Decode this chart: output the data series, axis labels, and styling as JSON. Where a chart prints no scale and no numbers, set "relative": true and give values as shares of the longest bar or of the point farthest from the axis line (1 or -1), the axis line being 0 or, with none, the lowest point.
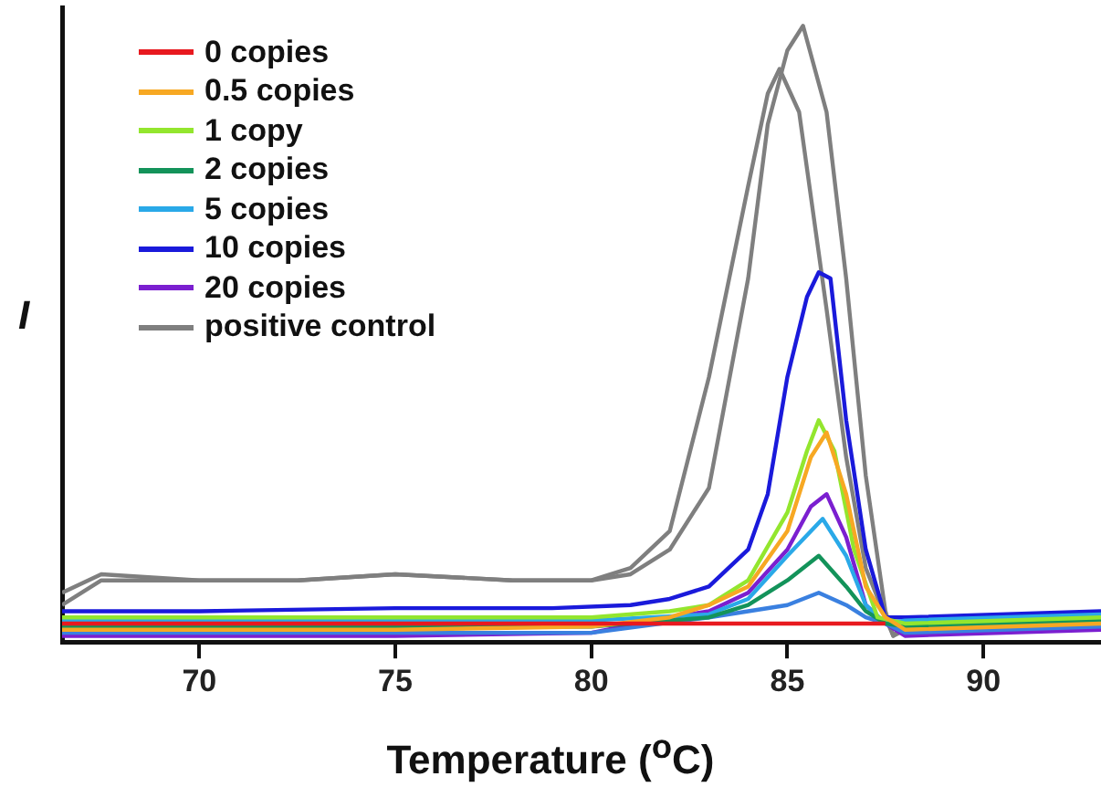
{
  "chart_data": {
    "type": "line",
    "relative": true,
    "xlabel": "Temperature ($^{o}$C)",
    "ylabel": "I",
    "xlim": [
      66.5,
      93
    ],
    "xticks": [
      70,
      75,
      80,
      85,
      90
    ],
    "grid": false,
    "legend": "top left",
    "marker": "none",
    "line_style": "solid",
    "series": [
      {
        "name": "0 copies",
        "color": "#e8191f",
        "x": [
          66.5,
          87.5
        ],
        "values": [
          0.03,
          0.03
        ]
      },
      {
        "name": "0.5 copies",
        "color": "#f7a823",
        "x": [
          66.5,
          75,
          80,
          82,
          83,
          84,
          85,
          85.6,
          86,
          86.5,
          87,
          87.5,
          88,
          93
        ],
        "values": [
          0.02,
          0.02,
          0.025,
          0.04,
          0.06,
          0.09,
          0.18,
          0.3,
          0.34,
          0.24,
          0.09,
          0.04,
          0.02,
          0.03
        ]
      },
      {
        "name": "1 copy",
        "color": "#93e62e",
        "x": [
          66.5,
          75,
          80,
          82,
          83,
          84,
          85,
          85.5,
          85.8,
          86.2,
          86.7,
          87.3,
          88,
          93
        ],
        "values": [
          0.04,
          0.04,
          0.04,
          0.05,
          0.06,
          0.1,
          0.21,
          0.31,
          0.36,
          0.31,
          0.15,
          0.04,
          0.03,
          0.04
        ]
      },
      {
        "name": "2 copies",
        "color": "#13935a",
        "x": [
          66.5,
          80,
          83,
          84,
          85,
          85.8,
          86.5,
          87,
          87.5,
          88,
          93
        ],
        "values": [
          0.025,
          0.025,
          0.04,
          0.06,
          0.1,
          0.14,
          0.09,
          0.05,
          0.03,
          0.025,
          0.035
        ]
      },
      {
        "name": "5 copies",
        "color": "#2aa9e8",
        "x": [
          66.5,
          80,
          83,
          84,
          85,
          85.9,
          86.5,
          87,
          87.5,
          88,
          93
        ],
        "values": [
          0.035,
          0.035,
          0.045,
          0.07,
          0.14,
          0.2,
          0.14,
          0.06,
          0.03,
          0.035,
          0.045
        ]
      },
      {
        "color": "#3a80e0",
        "x": [
          66.5,
          80,
          83,
          84,
          85,
          85.8,
          86.5,
          87,
          87.5,
          88,
          93
        ],
        "values": [
          0.015,
          0.015,
          0.04,
          0.05,
          0.06,
          0.08,
          0.06,
          0.04,
          0.03,
          0.015,
          0.025
        ]
      },
      {
        "name": "10 copies",
        "color": "#1a1adb",
        "x": [
          66.5,
          70,
          75,
          79,
          81,
          82,
          83,
          84,
          84.5,
          85,
          85.5,
          85.8,
          86.1,
          86.5,
          87,
          87.5,
          88,
          93
        ],
        "values": [
          0.05,
          0.05,
          0.055,
          0.055,
          0.06,
          0.07,
          0.09,
          0.15,
          0.24,
          0.43,
          0.56,
          0.6,
          0.59,
          0.36,
          0.15,
          0.04,
          0.04,
          0.05
        ]
      },
      {
        "name": "20 copies",
        "color": "#7b1fd0",
        "x": [
          66.5,
          75,
          80,
          82,
          83,
          84,
          85,
          85.6,
          86,
          86.5,
          87,
          87.5,
          88,
          93
        ],
        "values": [
          0.01,
          0.01,
          0.015,
          0.04,
          0.05,
          0.08,
          0.15,
          0.22,
          0.24,
          0.17,
          0.06,
          0.03,
          0.01,
          0.02
        ]
      },
      {
        "name": "positive control",
        "color": "#7f7f7f",
        "x": [
          66.5,
          67.5,
          70,
          72.5,
          75,
          78,
          80,
          81,
          82,
          83,
          84,
          84.5,
          85,
          85.4,
          86,
          86.5,
          87,
          87.5,
          87.7,
          88,
          90,
          93
        ],
        "values": [
          0.06,
          0.1,
          0.1,
          0.1,
          0.11,
          0.1,
          0.1,
          0.11,
          0.15,
          0.25,
          0.59,
          0.84,
          0.96,
          1.0,
          0.86,
          0.59,
          0.27,
          0.05,
          0.01,
          0.03,
          0.04,
          0.045
        ]
      },
      {
        "color": "#7f7f7f",
        "x": [
          66.5,
          67.5,
          70,
          72.5,
          75,
          78,
          80,
          81,
          82,
          83,
          84,
          84.5,
          84.8,
          85.3,
          86,
          86.5,
          87,
          87.5,
          87.7,
          88,
          90,
          93
        ],
        "values": [
          0.08,
          0.11,
          0.1,
          0.1,
          0.11,
          0.1,
          0.1,
          0.12,
          0.18,
          0.43,
          0.74,
          0.89,
          0.93,
          0.86,
          0.54,
          0.3,
          0.12,
          0.04,
          0.01,
          0.02,
          0.03,
          0.035
        ]
      }
    ]
  }
}
